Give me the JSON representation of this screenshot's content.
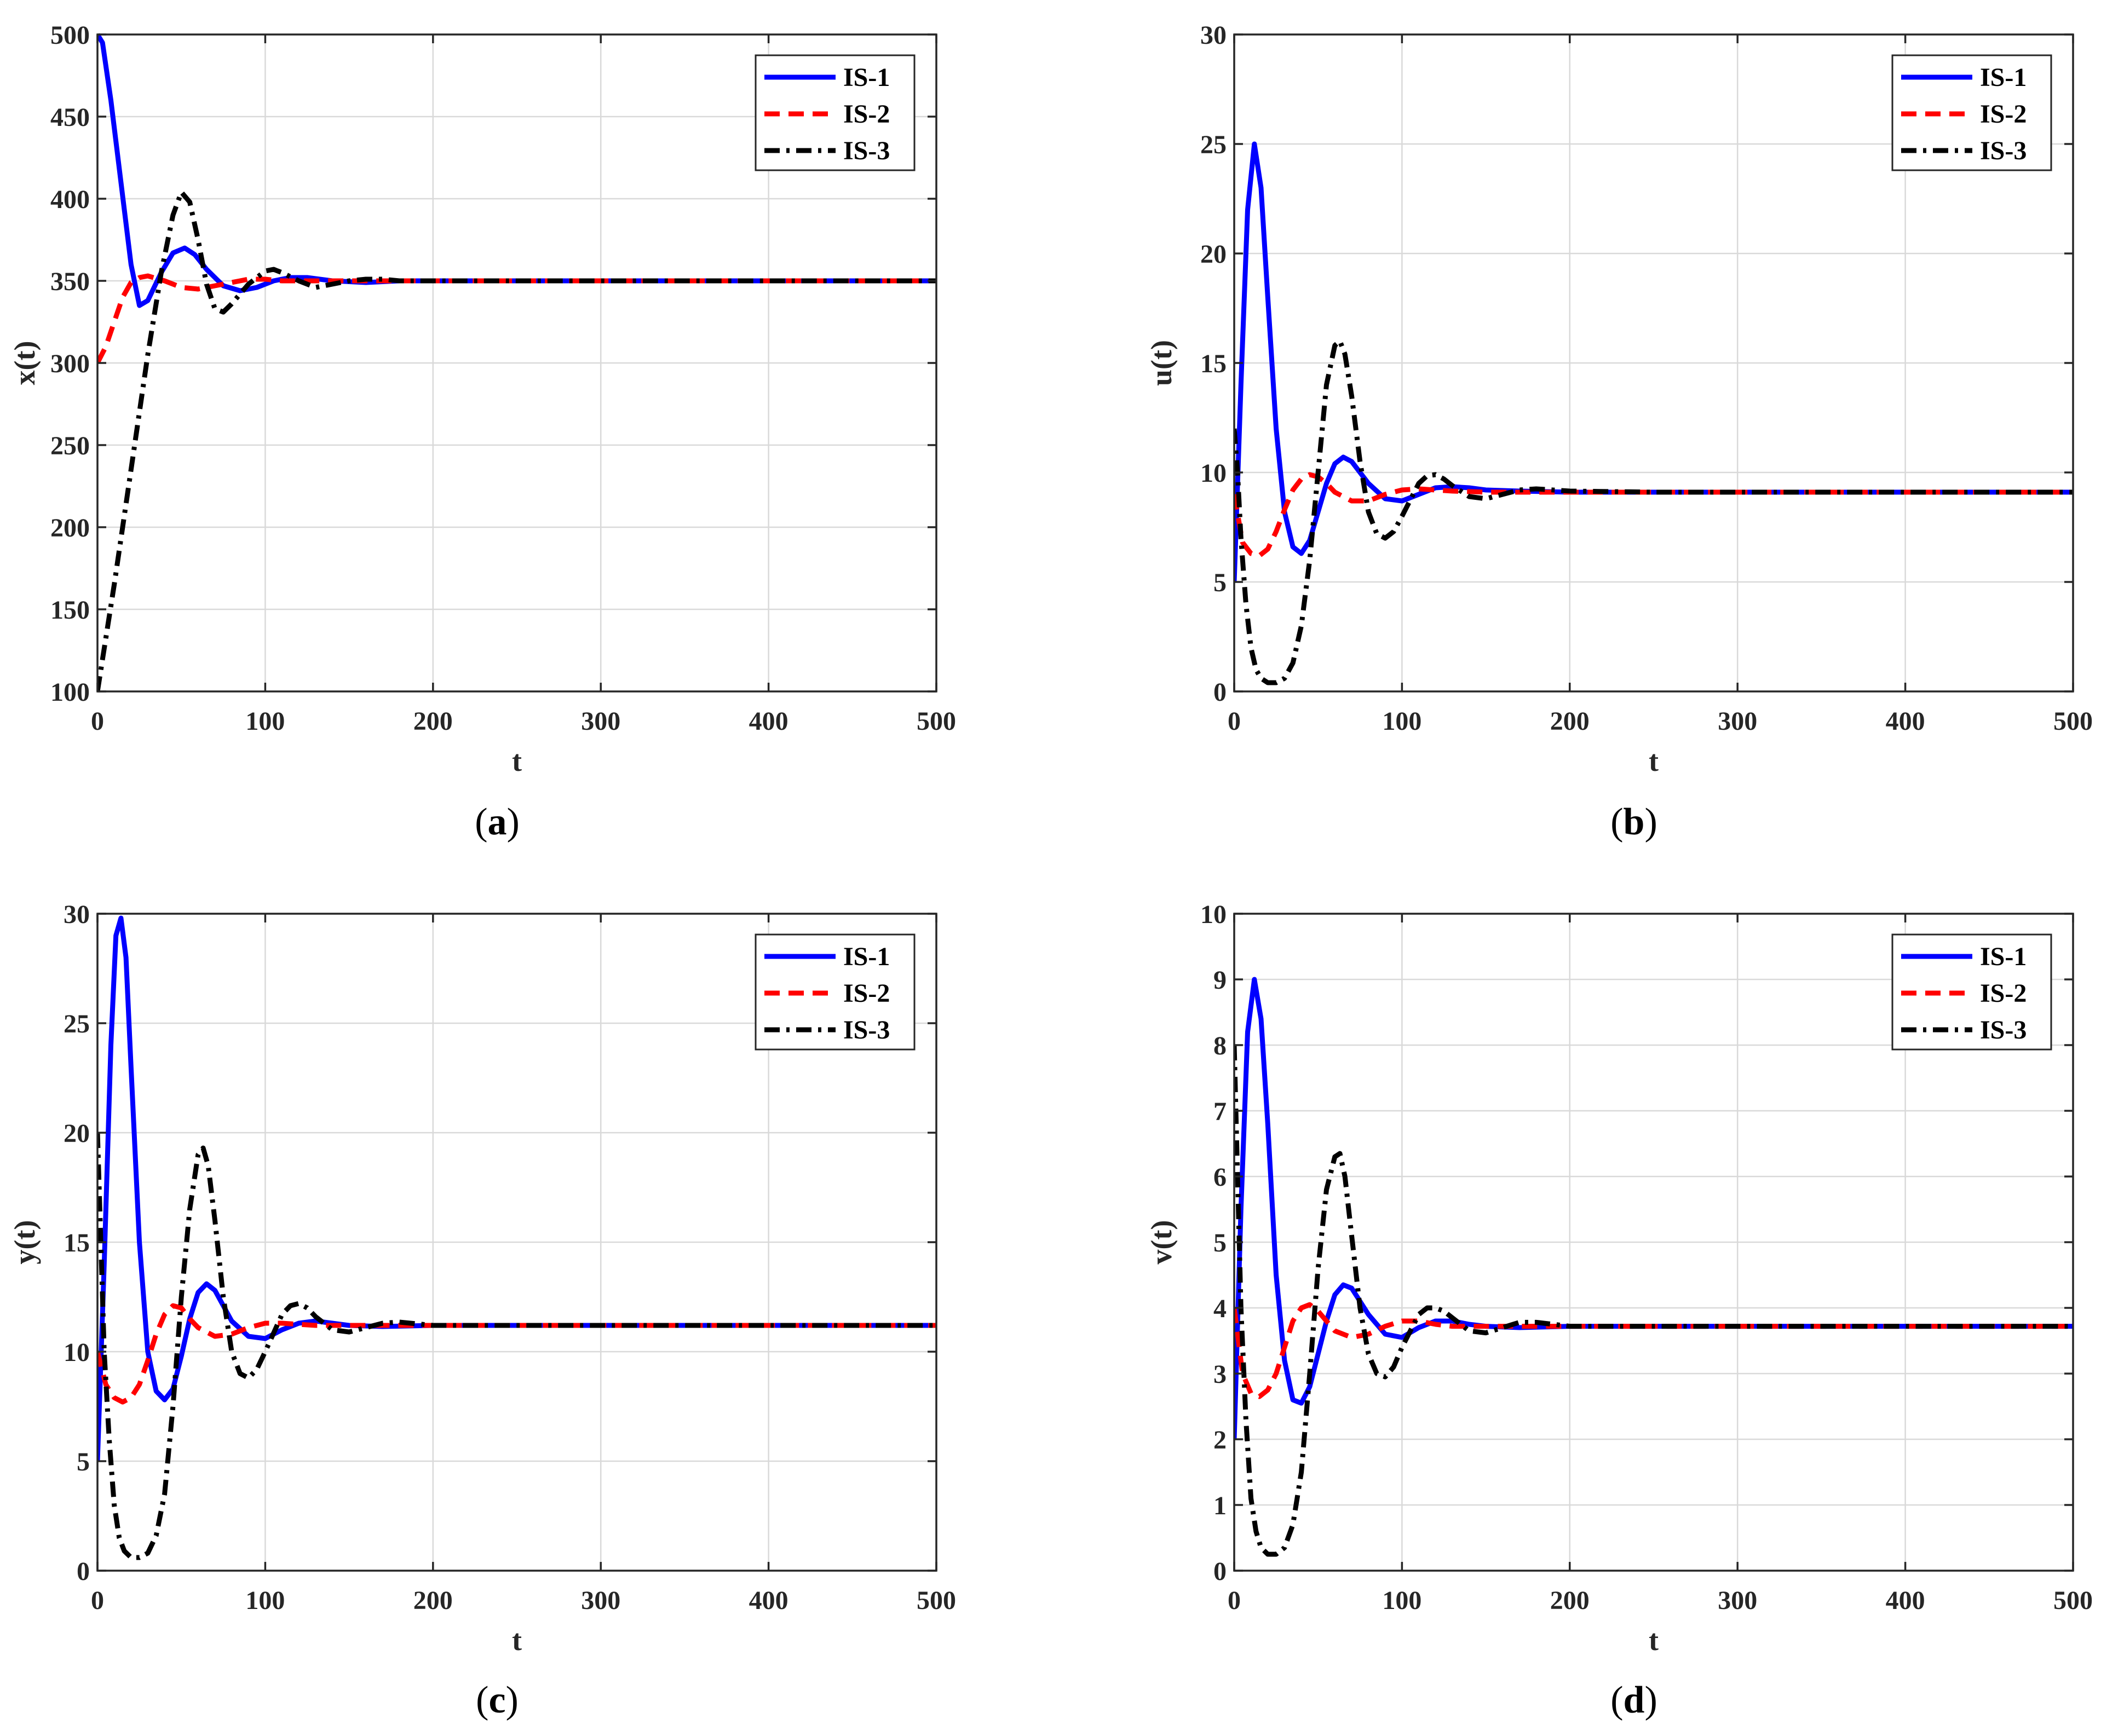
{
  "colors": {
    "IS-1": "#0000ff",
    "IS-2": "#ff0000",
    "IS-3": "#000000"
  },
  "chart_data": [
    {
      "type": "line",
      "caption_letter": "a",
      "xlabel": "t",
      "ylabel": "x(t)",
      "xlim": [
        0,
        500
      ],
      "ylim": [
        100,
        500
      ],
      "xticks": [
        0,
        100,
        200,
        300,
        400,
        500
      ],
      "yticks": [
        100,
        150,
        200,
        250,
        300,
        350,
        400,
        450,
        500
      ],
      "grid": true,
      "legend_position": "top-right",
      "series": [
        {
          "name": "IS-1",
          "style": "solid",
          "x": [
            0,
            3,
            8,
            14,
            20,
            25,
            30,
            38,
            45,
            52,
            58,
            65,
            75,
            85,
            95,
            105,
            115,
            125,
            140,
            160,
            180,
            200,
            250,
            500
          ],
          "values": [
            500,
            495,
            460,
            410,
            360,
            335,
            338,
            355,
            367,
            370,
            366,
            357,
            347,
            344,
            346,
            350,
            352,
            352,
            350,
            349,
            350,
            350,
            350,
            350
          ]
        },
        {
          "name": "IS-2",
          "style": "dashed",
          "x": [
            0,
            5,
            10,
            15,
            20,
            25,
            30,
            40,
            50,
            60,
            70,
            80,
            90,
            100,
            110,
            130,
            160,
            200,
            250,
            500
          ],
          "values": [
            300,
            310,
            325,
            340,
            349,
            352,
            353,
            350,
            346,
            345,
            347,
            349,
            351,
            351,
            350,
            350,
            350,
            350,
            350,
            350
          ]
        },
        {
          "name": "IS-3",
          "style": "dashdot",
          "x": [
            0,
            10,
            20,
            30,
            38,
            45,
            50,
            55,
            60,
            65,
            70,
            75,
            80,
            90,
            100,
            105,
            110,
            120,
            130,
            140,
            150,
            160,
            170,
            180,
            200,
            250,
            500
          ],
          "values": [
            100,
            165,
            235,
            305,
            355,
            390,
            404,
            398,
            375,
            348,
            333,
            331,
            336,
            348,
            356,
            357,
            355,
            350,
            346,
            348,
            350,
            351,
            351,
            350,
            350,
            350,
            350
          ]
        }
      ]
    },
    {
      "type": "line",
      "caption_letter": "b",
      "xlabel": "t",
      "ylabel": "u(t)",
      "xlim": [
        0,
        500
      ],
      "ylim": [
        0,
        30
      ],
      "xticks": [
        0,
        100,
        200,
        300,
        400,
        500
      ],
      "yticks": [
        0,
        5,
        10,
        15,
        20,
        25,
        30
      ],
      "grid": true,
      "legend_position": "top-right",
      "series": [
        {
          "name": "IS-1",
          "style": "solid",
          "x": [
            0,
            4,
            8,
            12,
            16,
            20,
            25,
            30,
            35,
            40,
            45,
            50,
            55,
            60,
            65,
            70,
            75,
            80,
            90,
            100,
            110,
            120,
            130,
            140,
            150,
            170,
            200,
            250,
            500
          ],
          "values": [
            5,
            14,
            22,
            25,
            23,
            18,
            12,
            8.2,
            6.6,
            6.3,
            6.9,
            8.2,
            9.5,
            10.4,
            10.7,
            10.5,
            10.0,
            9.5,
            8.8,
            8.7,
            9.0,
            9.3,
            9.35,
            9.3,
            9.2,
            9.15,
            9.1,
            9.1,
            9.1
          ]
        },
        {
          "name": "IS-2",
          "style": "dashed",
          "x": [
            0,
            5,
            10,
            15,
            20,
            25,
            30,
            35,
            40,
            45,
            50,
            55,
            60,
            70,
            80,
            90,
            100,
            110,
            120,
            130,
            150,
            180,
            200,
            250,
            500
          ],
          "values": [
            9,
            6.8,
            6.3,
            6.2,
            6.5,
            7.3,
            8.3,
            9.2,
            9.7,
            9.9,
            9.8,
            9.5,
            9.1,
            8.7,
            8.7,
            9.0,
            9.2,
            9.25,
            9.2,
            9.15,
            9.1,
            9.1,
            9.1,
            9.1,
            9.1
          ]
        },
        {
          "name": "IS-3",
          "style": "dashdot",
          "x": [
            0,
            2,
            4,
            7,
            10,
            13,
            16,
            20,
            25,
            30,
            35,
            40,
            45,
            50,
            55,
            60,
            63,
            66,
            70,
            75,
            80,
            85,
            90,
            95,
            100,
            110,
            115,
            120,
            125,
            130,
            140,
            150,
            160,
            170,
            180,
            200,
            250,
            500
          ],
          "values": [
            12,
            10,
            7,
            4,
            2,
            1,
            0.6,
            0.4,
            0.4,
            0.6,
            1.3,
            3,
            6,
            10,
            14,
            15.8,
            16,
            15.4,
            13.5,
            10.5,
            8.2,
            7.2,
            7.0,
            7.3,
            8.0,
            9.5,
            9.85,
            9.9,
            9.7,
            9.4,
            8.9,
            8.8,
            9.0,
            9.2,
            9.25,
            9.15,
            9.1,
            9.1
          ]
        }
      ]
    },
    {
      "type": "line",
      "caption_letter": "c",
      "xlabel": "t",
      "ylabel": "y(t)",
      "xlim": [
        0,
        500
      ],
      "ylim": [
        0,
        30
      ],
      "xticks": [
        0,
        100,
        200,
        300,
        400,
        500
      ],
      "yticks": [
        0,
        5,
        10,
        15,
        20,
        25,
        30
      ],
      "grid": true,
      "legend_position": "top-right",
      "series": [
        {
          "name": "IS-1",
          "style": "solid",
          "x": [
            0,
            4,
            8,
            11,
            14,
            17,
            20,
            25,
            30,
            35,
            40,
            45,
            50,
            55,
            60,
            65,
            70,
            75,
            80,
            90,
            100,
            110,
            120,
            130,
            140,
            150,
            170,
            200,
            250,
            500
          ],
          "values": [
            5,
            14,
            24,
            29,
            29.8,
            28,
            23,
            15,
            10,
            8.2,
            7.8,
            8.3,
            9.8,
            11.5,
            12.7,
            13.1,
            12.8,
            12.1,
            11.4,
            10.7,
            10.6,
            11.0,
            11.3,
            11.4,
            11.3,
            11.2,
            11.15,
            11.2,
            11.2,
            11.2
          ]
        },
        {
          "name": "IS-2",
          "style": "dashed",
          "x": [
            0,
            5,
            10,
            15,
            20,
            25,
            30,
            35,
            40,
            45,
            50,
            55,
            60,
            70,
            80,
            90,
            100,
            110,
            120,
            130,
            150,
            180,
            200,
            250,
            500
          ],
          "values": [
            10,
            8.5,
            7.9,
            7.7,
            7.9,
            8.5,
            9.6,
            10.8,
            11.7,
            12.1,
            12.0,
            11.5,
            11.1,
            10.7,
            10.8,
            11.1,
            11.3,
            11.3,
            11.25,
            11.2,
            11.2,
            11.2,
            11.2,
            11.2,
            11.2
          ]
        },
        {
          "name": "IS-3",
          "style": "dashdot",
          "x": [
            0,
            2,
            4,
            7,
            10,
            13,
            16,
            20,
            25,
            30,
            35,
            40,
            45,
            50,
            55,
            60,
            63,
            66,
            70,
            75,
            80,
            85,
            90,
            95,
            100,
            110,
            115,
            120,
            125,
            130,
            140,
            150,
            160,
            170,
            180,
            200,
            250,
            500
          ],
          "values": [
            20,
            15,
            10,
            6,
            3,
            1.5,
            0.9,
            0.6,
            0.6,
            0.8,
            1.6,
            3.5,
            7.5,
            12.5,
            16.5,
            19,
            19.3,
            18.5,
            16,
            12.5,
            10,
            9.0,
            8.8,
            9.2,
            10,
            11.7,
            12.1,
            12.2,
            12.0,
            11.6,
            11.0,
            10.9,
            11.1,
            11.3,
            11.35,
            11.2,
            11.2,
            11.2
          ]
        }
      ]
    },
    {
      "type": "line",
      "caption_letter": "d",
      "xlabel": "t",
      "ylabel": "v(t)",
      "xlim": [
        0,
        500
      ],
      "ylim": [
        0,
        10
      ],
      "xticks": [
        0,
        100,
        200,
        300,
        400,
        500
      ],
      "yticks": [
        0,
        1,
        2,
        3,
        4,
        5,
        6,
        7,
        8,
        9,
        10
      ],
      "grid": true,
      "legend_position": "top-right",
      "series": [
        {
          "name": "IS-1",
          "style": "solid",
          "x": [
            0,
            4,
            8,
            12,
            16,
            20,
            25,
            30,
            35,
            40,
            45,
            50,
            55,
            60,
            65,
            70,
            75,
            80,
            90,
            100,
            110,
            120,
            130,
            140,
            150,
            170,
            200,
            250,
            500
          ],
          "values": [
            2,
            5.5,
            8.2,
            9,
            8.4,
            6.8,
            4.5,
            3.2,
            2.6,
            2.55,
            2.8,
            3.3,
            3.8,
            4.2,
            4.35,
            4.3,
            4.1,
            3.9,
            3.6,
            3.55,
            3.7,
            3.8,
            3.8,
            3.75,
            3.72,
            3.7,
            3.72,
            3.72,
            3.72
          ]
        },
        {
          "name": "IS-2",
          "style": "dashed",
          "x": [
            0,
            5,
            10,
            15,
            20,
            25,
            30,
            35,
            40,
            45,
            50,
            55,
            60,
            70,
            80,
            90,
            100,
            110,
            120,
            130,
            150,
            180,
            200,
            250,
            500
          ],
          "values": [
            4,
            3.0,
            2.7,
            2.65,
            2.75,
            3.0,
            3.4,
            3.8,
            4.0,
            4.05,
            3.95,
            3.8,
            3.65,
            3.55,
            3.6,
            3.72,
            3.8,
            3.8,
            3.75,
            3.72,
            3.72,
            3.72,
            3.72,
            3.72,
            3.72
          ]
        },
        {
          "name": "IS-3",
          "style": "dashdot",
          "x": [
            0,
            2,
            4,
            7,
            10,
            13,
            16,
            20,
            25,
            30,
            35,
            40,
            45,
            50,
            55,
            60,
            63,
            66,
            70,
            75,
            80,
            85,
            90,
            95,
            100,
            110,
            115,
            120,
            125,
            130,
            140,
            150,
            160,
            170,
            180,
            200,
            250,
            500
          ],
          "values": [
            8,
            6,
            4,
            2.3,
            1.1,
            0.6,
            0.35,
            0.25,
            0.25,
            0.35,
            0.7,
            1.5,
            3,
            4.6,
            5.8,
            6.3,
            6.35,
            6.0,
            5.1,
            4.0,
            3.3,
            3.0,
            2.95,
            3.1,
            3.4,
            3.9,
            4.0,
            4.0,
            3.95,
            3.85,
            3.65,
            3.62,
            3.7,
            3.78,
            3.78,
            3.72,
            3.72,
            3.72
          ]
        }
      ]
    }
  ]
}
